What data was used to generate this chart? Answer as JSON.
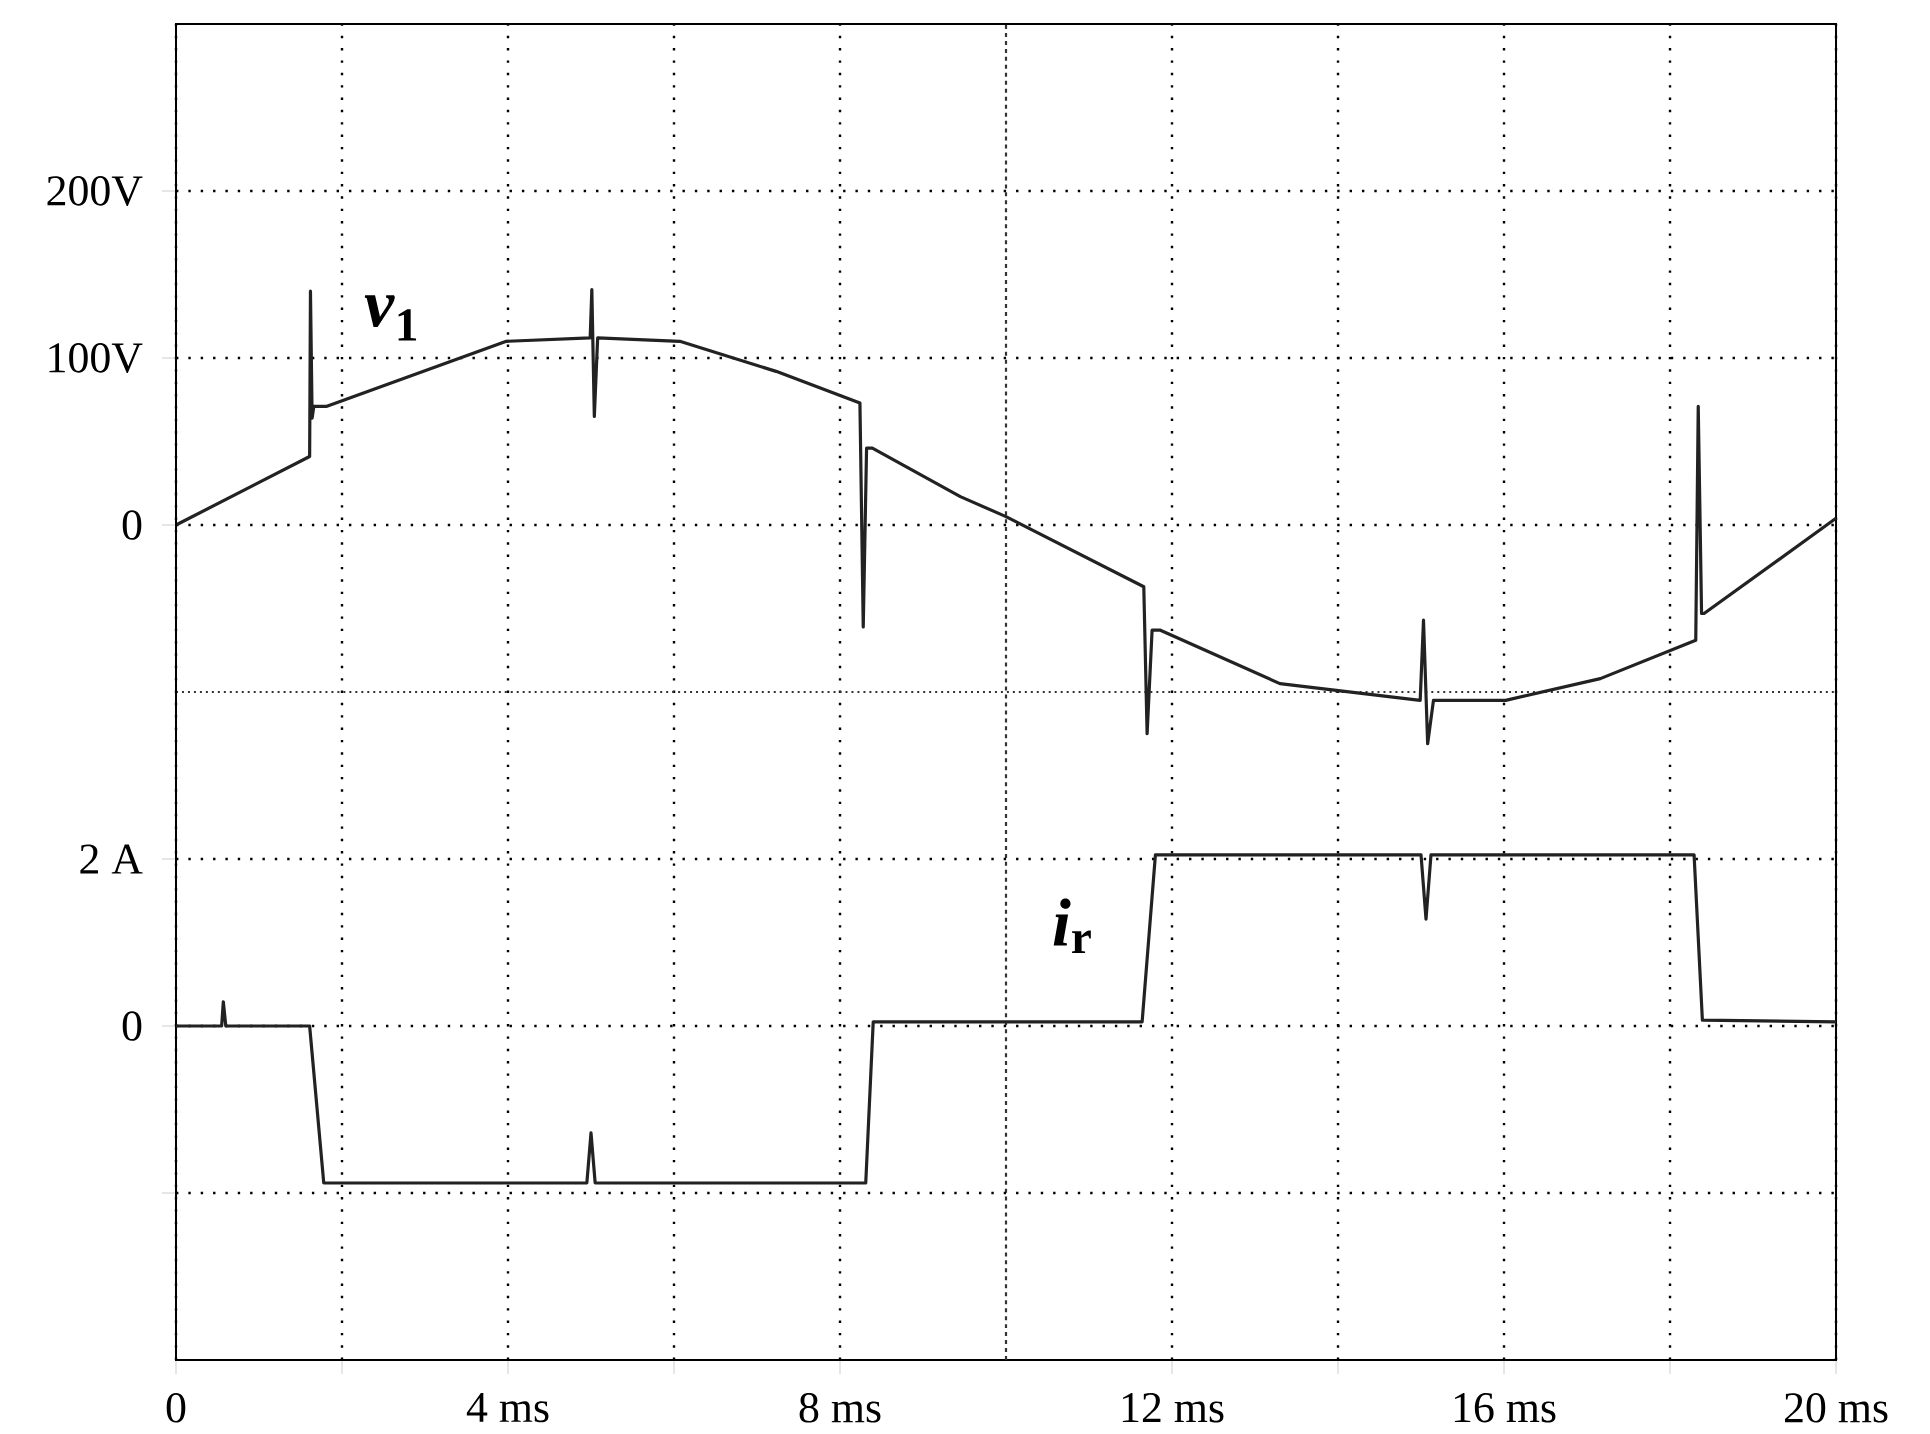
{
  "chart_data": {
    "type": "line",
    "xlim": [
      0,
      20
    ],
    "ylim": [
      -500,
      300
    ],
    "y2lim": [
      -4,
      12
    ],
    "xticks": [
      0,
      {
        "value": 2,
        "label": null
      },
      {
        "value": 4,
        "label": "4 ms"
      },
      {
        "value": 6,
        "label": null
      },
      {
        "value": 8,
        "label": "8 ms"
      },
      {
        "value": 12,
        "label": "12 ms"
      },
      {
        "value": 14,
        "label": null
      },
      {
        "value": 16,
        "label": "16 ms"
      },
      {
        "value": 18,
        "label": null
      },
      {
        "value": 20,
        "label": "20 ms"
      }
    ],
    "yticks": [
      0,
      {
        "value": 100,
        "label": "100V"
      },
      {
        "value": 200,
        "label": "200V"
      }
    ],
    "y2ticks": [
      {
        "value": -2,
        "label": null
      },
      0,
      {
        "value": 2,
        "label": "2 A"
      }
    ],
    "grid": true,
    "line_style": "solid",
    "marker": "none",
    "ref_lines": [
      {
        "axis": "x",
        "value": 10,
        "line_style": "dashed",
        "color": "#333333"
      },
      {
        "axis": "y",
        "value": -100,
        "line_style": "dotted",
        "color": "#333333"
      }
    ],
    "annotations": [
      "*v*$_{1}$",
      "*i*$_{r}$"
    ],
    "series": [
      {
        "color": "#222222",
        "axis": "y",
        "x": [
          0,
          1.61,
          1.62,
          1.64,
          1.66,
          1.81,
          3.98,
          4.99,
          5.01,
          5.04,
          5.08,
          6.07,
          7.23,
          8.24,
          8.28,
          8.32,
          8.39,
          9.45,
          10.0,
          11.66,
          11.7,
          11.76,
          11.86,
          13.3,
          13.98,
          14.99,
          15.03,
          15.08,
          15.15,
          15.28,
          16.02,
          17.16,
          18.31,
          18.34,
          18.38,
          18.41,
          20
        ],
        "values": [
          0,
          41,
          140,
          64,
          71,
          71,
          110,
          112,
          141,
          65,
          112,
          110,
          92,
          73,
          -61,
          46,
          46,
          17,
          5,
          -37,
          -125,
          -63,
          -63,
          -95,
          -99,
          -105,
          -57,
          -131,
          -105,
          -105,
          -105,
          -92,
          -69,
          71,
          -53,
          -53,
          4
        ]
      },
      {
        "color": "#222222",
        "axis": "y2",
        "x": [
          0,
          0.55,
          0.57,
          0.6,
          1.61,
          1.78,
          4.95,
          5.0,
          5.05,
          8.31,
          8.4,
          11.64,
          11.8,
          15.0,
          15.06,
          15.12,
          18.29,
          18.39,
          20
        ],
        "values": [
          0,
          0,
          0.29,
          0,
          0,
          -1.88,
          -1.88,
          -1.28,
          -1.88,
          -1.88,
          0.05,
          0.05,
          2.05,
          2.05,
          1.28,
          2.05,
          2.05,
          0.07,
          0.05
        ]
      }
    ]
  }
}
